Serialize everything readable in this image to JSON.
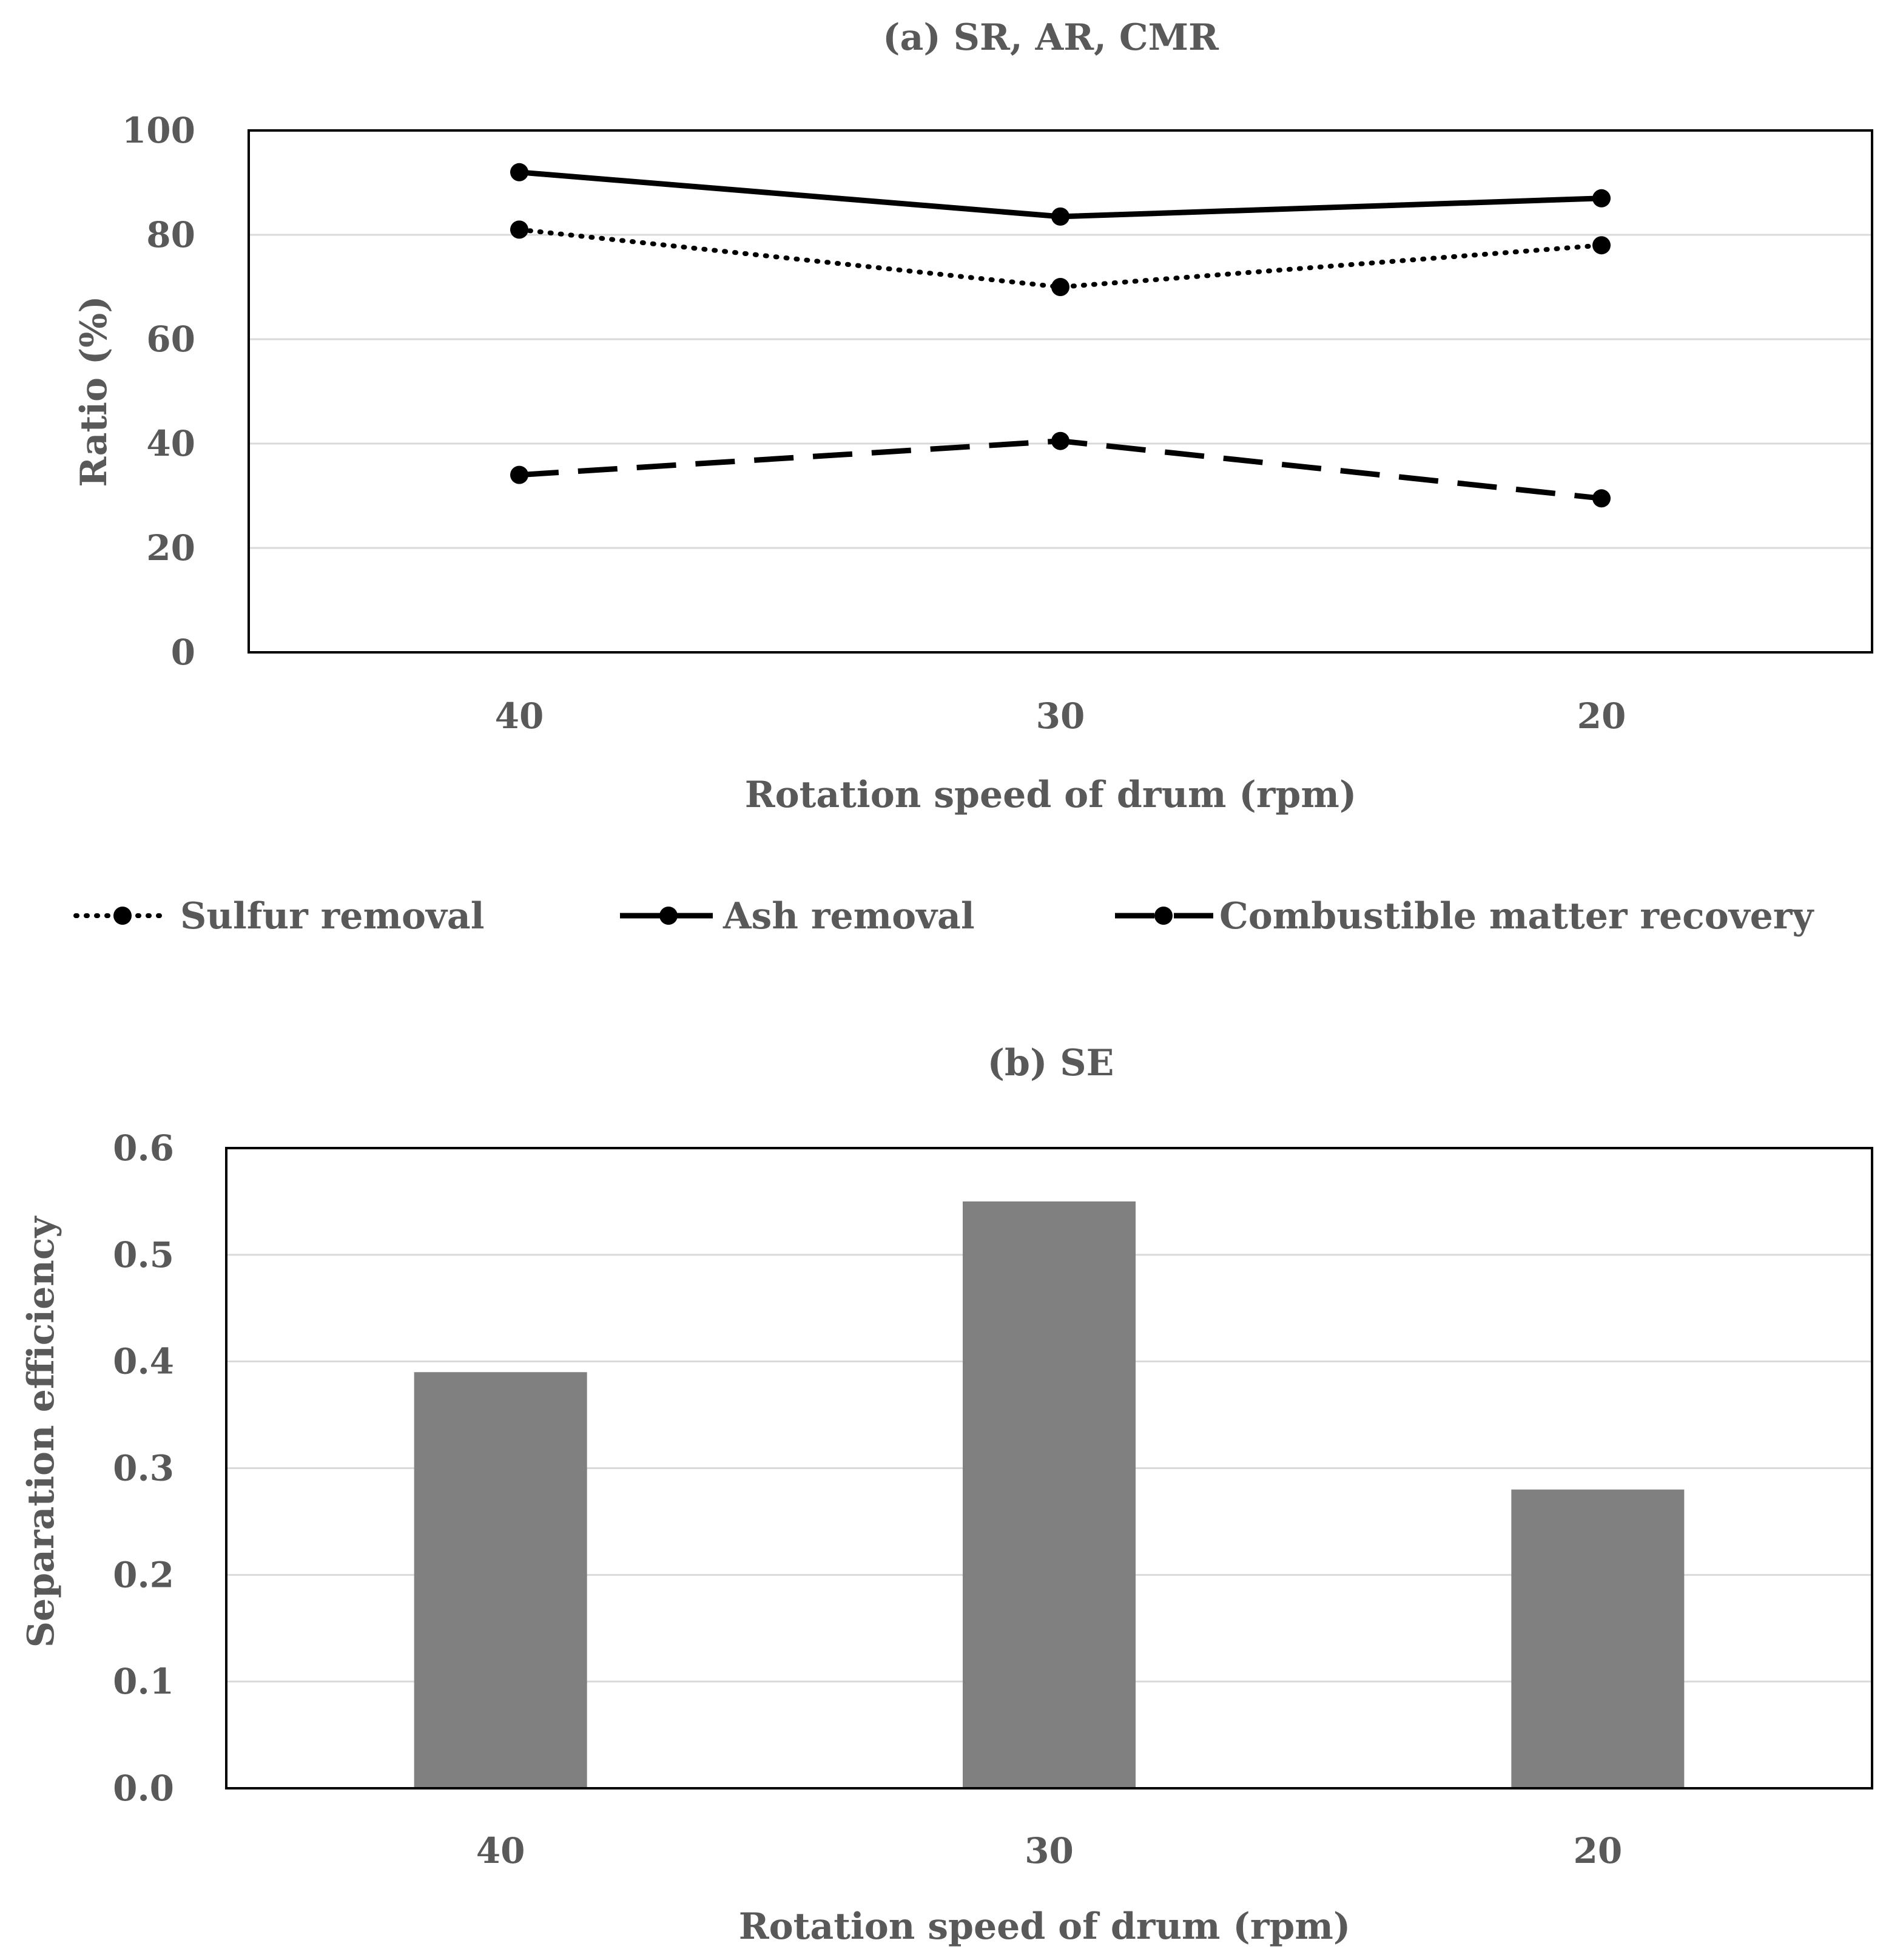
{
  "chart_data": [
    {
      "type": "line",
      "title": "(a) SR, AR, CMR",
      "xlabel": "Rotation speed of drum (rpm)",
      "ylabel": "Ratio (%)",
      "categories": [
        "40",
        "30",
        "20"
      ],
      "ylim": [
        0,
        100
      ],
      "yticks": [
        "0",
        "20",
        "40",
        "60",
        "80",
        "100"
      ],
      "grid": true,
      "legend_position": "bottom",
      "series": [
        {
          "name": "Sulfur removal",
          "style": "dotted",
          "values": [
            81,
            70,
            78
          ]
        },
        {
          "name": "Ash removal",
          "style": "solid",
          "values": [
            92,
            83.5,
            87
          ]
        },
        {
          "name": "Combustible matter recovery",
          "style": "dashed",
          "values": [
            34,
            40.5,
            29.5
          ]
        }
      ],
      "colors": {
        "line": "#000000",
        "grid": "#d9d9d9",
        "text": "#595959"
      }
    },
    {
      "type": "bar",
      "title": "(b) SE",
      "xlabel": "Rotation speed of drum (rpm)",
      "ylabel": "Separation efficiency",
      "categories": [
        "40",
        "30",
        "20"
      ],
      "values": [
        0.39,
        0.55,
        0.28
      ],
      "ylim": [
        0,
        0.6
      ],
      "yticks": [
        "0.0",
        "0.1",
        "0.2",
        "0.3",
        "0.4",
        "0.5",
        "0.6"
      ],
      "grid": true,
      "colors": {
        "bar": "#808080",
        "grid": "#d9d9d9",
        "text": "#595959"
      }
    }
  ]
}
